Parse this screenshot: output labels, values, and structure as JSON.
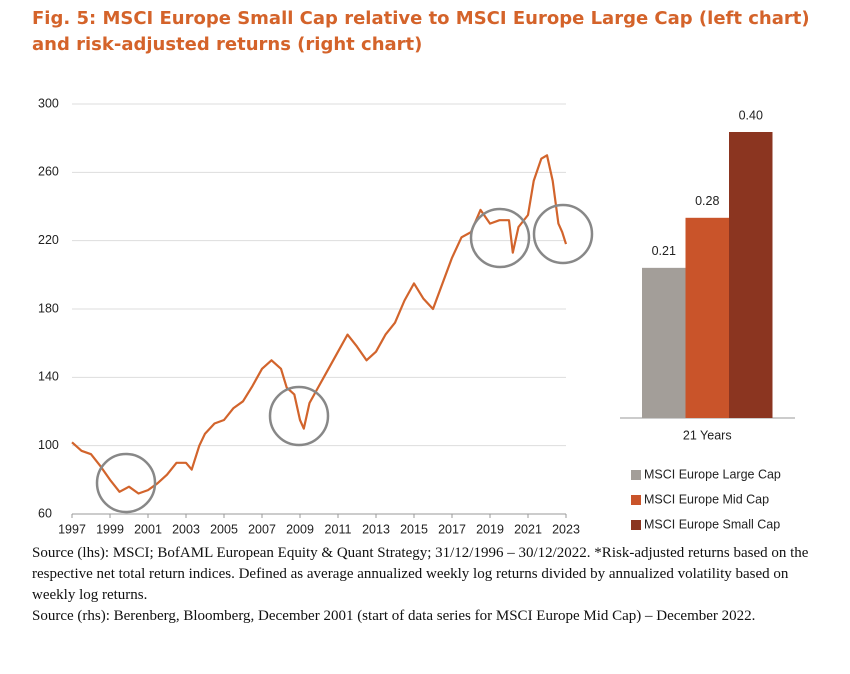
{
  "title": "Fig. 5: MSCI Europe Small Cap relative to MSCI Europe Large Cap (left chart) and risk-adjusted returns (right chart)",
  "source_lhs": "Source (lhs): MSCI; BofAML European Equity & Quant Strategy; 31/12/1996 – 30/12/2022. *Risk-adjusted returns based on the respective net total return indices. Defined as average annualized weekly log returns divided by annualized volatility based on weekly log returns.",
  "source_rhs": "Source (rhs): Berenberg, Bloomberg, December 2001 (start of data series for MSCI Europe Mid Cap) – December 2022.",
  "chart_data": [
    {
      "type": "line",
      "color": "#d2642c",
      "grid": true,
      "x": [
        1997.0,
        1997.5,
        1998.0,
        1998.5,
        1999.0,
        1999.5,
        2000.0,
        2000.5,
        2001.0,
        2001.5,
        2002.0,
        2002.5,
        2003.0,
        2003.3,
        2003.7,
        2004.0,
        2004.5,
        2005.0,
        2005.5,
        2006.0,
        2006.5,
        2007.0,
        2007.5,
        2008.0,
        2008.3,
        2008.7,
        2009.0,
        2009.2,
        2009.5,
        2010.0,
        2010.5,
        2011.0,
        2011.5,
        2012.0,
        2012.5,
        2013.0,
        2013.5,
        2014.0,
        2014.5,
        2015.0,
        2015.5,
        2016.0,
        2016.5,
        2017.0,
        2017.5,
        2018.0,
        2018.5,
        2019.0,
        2019.5,
        2020.0,
        2020.2,
        2020.5,
        2021.0,
        2021.3,
        2021.7,
        2022.0,
        2022.3,
        2022.6,
        2022.8,
        2023.0
      ],
      "values": [
        102,
        97,
        95,
        88,
        80,
        73,
        76,
        72,
        74,
        78,
        83,
        90,
        90,
        86,
        100,
        107,
        113,
        115,
        122,
        126,
        135,
        145,
        150,
        145,
        134,
        130,
        115,
        110,
        125,
        135,
        145,
        155,
        165,
        158,
        150,
        155,
        165,
        172,
        185,
        195,
        186,
        180,
        195,
        210,
        222,
        225,
        238,
        230,
        232,
        232,
        213,
        228,
        235,
        255,
        268,
        270,
        255,
        230,
        225,
        218
      ],
      "xlim": [
        1997,
        2023
      ],
      "xticks": [
        1997,
        1999,
        2001,
        2003,
        2005,
        2007,
        2009,
        2011,
        2013,
        2015,
        2017,
        2019,
        2021,
        2023
      ],
      "ylim": [
        60,
        300
      ],
      "yticks": [
        60,
        100,
        140,
        180,
        220,
        260,
        300
      ]
    },
    {
      "type": "bar",
      "categories": [
        "21 Years"
      ],
      "legend": "bottom",
      "series": [
        {
          "name": "MSCI Europe Large Cap",
          "color": "#a39e99",
          "values": [
            0.21
          ],
          "value_labels": [
            "0.21"
          ]
        },
        {
          "name": "MSCI Europe Mid Cap",
          "color": "#c9542a",
          "values": [
            0.28
          ],
          "value_labels": [
            "0.28"
          ]
        },
        {
          "name": "MSCI Europe Small Cap",
          "color": "#8b3520",
          "values": [
            0.4
          ],
          "value_labels": [
            "0.40"
          ]
        }
      ]
    }
  ]
}
